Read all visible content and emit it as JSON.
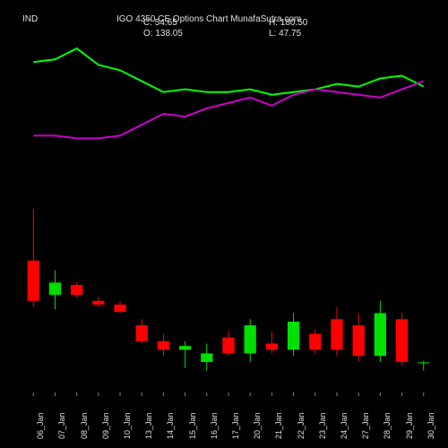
{
  "header": {
    "ticker": "IND",
    "title": "IGO 4350 CE Options Chart MunafaSutra.com"
  },
  "quotes": {
    "close_label": "C: 54.65",
    "high_label": "H: 180.50",
    "open_label": "O: 138.05",
    "low_label": "L: 47.75"
  },
  "chart": {
    "type": "candlestick+lines",
    "background_color": "#000000",
    "text_color": "#e0e0e0",
    "axis_color": "#404040",
    "candle_up_color": "#00e000",
    "candle_down_color": "#ff0000",
    "line1_color": "#00ff00",
    "line2_color": "#cc00cc",
    "x_labels": [
      "06_Jan",
      "07_Jan",
      "08_Jan",
      "09_Jan",
      "10_Jan",
      "13_Jan",
      "14_Jan",
      "15_Jan",
      "16_Jan",
      "17_Jan",
      "20_Jan",
      "21_Jan",
      "22_Jan",
      "23_Jan",
      "24_Jan",
      "27_Jan",
      "28_Jan",
      "29_Jan",
      "30_Jan"
    ],
    "upper_y_min": 4100,
    "upper_y_max": 4600,
    "line1": [
      4530,
      4540,
      4580,
      4520,
      4500,
      4460,
      4420,
      4430,
      4420,
      4420,
      4430,
      4410,
      4420,
      4430,
      4450,
      4440,
      4470,
      4480,
      4440
    ],
    "line2": [
      4260,
      4260,
      4250,
      4250,
      4260,
      4300,
      4340,
      4330,
      4360,
      4380,
      4400,
      4370,
      4410,
      4430,
      4420,
      4410,
      4400,
      4430,
      4460
    ],
    "candle_y_min": 30,
    "candle_y_max": 190,
    "candles": [
      {
        "o": 138.05,
        "h": 180.5,
        "l": 100,
        "c": 105
      },
      {
        "o": 110,
        "h": 130,
        "l": 98,
        "c": 120
      },
      {
        "o": 118,
        "h": 120,
        "l": 108,
        "c": 110
      },
      {
        "o": 105,
        "h": 108,
        "l": 100,
        "c": 102
      },
      {
        "o": 102,
        "h": 105,
        "l": 95,
        "c": 96
      },
      {
        "o": 85,
        "h": 90,
        "l": 70,
        "c": 72
      },
      {
        "o": 72,
        "h": 78,
        "l": 60,
        "c": 65
      },
      {
        "o": 65,
        "h": 72,
        "l": 50,
        "c": 68
      },
      {
        "o": 55,
        "h": 70,
        "l": 48,
        "c": 62
      },
      {
        "o": 75,
        "h": 80,
        "l": 60,
        "c": 62
      },
      {
        "o": 62,
        "h": 90,
        "l": 55,
        "c": 85
      },
      {
        "o": 70,
        "h": 80,
        "l": 62,
        "c": 65
      },
      {
        "o": 65,
        "h": 95,
        "l": 60,
        "c": 88
      },
      {
        "o": 78,
        "h": 82,
        "l": 62,
        "c": 65
      },
      {
        "o": 90,
        "h": 100,
        "l": 60,
        "c": 65
      },
      {
        "o": 85,
        "h": 95,
        "l": 55,
        "c": 60
      },
      {
        "o": 60,
        "h": 105,
        "l": 55,
        "c": 95
      },
      {
        "o": 90,
        "h": 95,
        "l": 52,
        "c": 55
      },
      {
        "o": 54,
        "h": 56,
        "l": 47.75,
        "c": 54.65
      }
    ],
    "label_fontsize": 9
  }
}
